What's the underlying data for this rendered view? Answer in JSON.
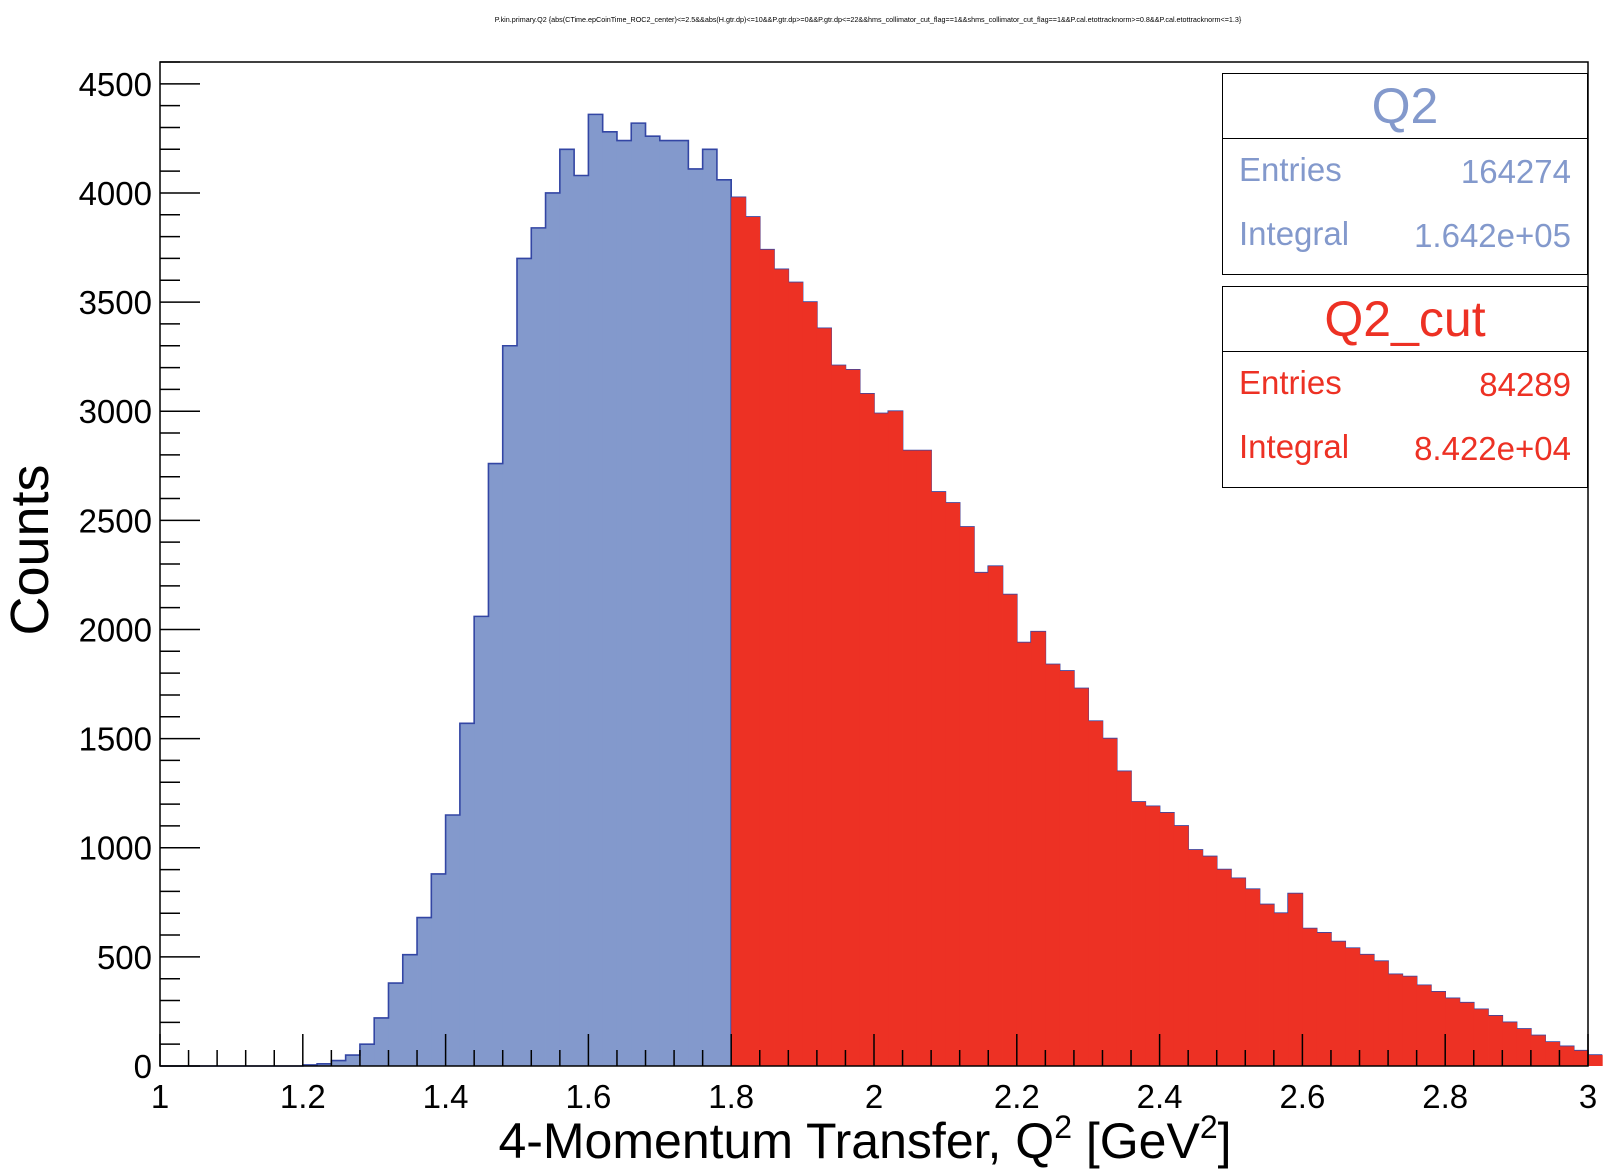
{
  "colors": {
    "q2_fill": "#8399cc",
    "q2_line": "#3346a4",
    "cut_fill": "#ed3124",
    "axis": "#000000"
  },
  "chart_data": {
    "type": "bar",
    "title": "P.kin.primary.Q2 {abs(CTime.epCoinTime_ROC2_center)<=2.5&&abs(H.gtr.dp)<=10&&P.gtr.dp>=0&&P.gtr.dp<=22&&hms_collimator_cut_flag==1&&shms_collimator_cut_flag==1&&P.cal.etottracknorm>=0.8&&P.cal.etottracknorm<=1.3}",
    "xlabel": "4-Momentum Transfer, Q",
    "xlabel_sup1": "2",
    "xlabel_units": " [GeV",
    "xlabel_sup2": "2",
    "xlabel_close": "]",
    "ylabel": "Counts",
    "xlim": [
      1,
      3
    ],
    "ylim": [
      0,
      4600
    ],
    "x_ticks": [
      "1",
      "1.2",
      "1.4",
      "1.6",
      "1.8",
      "2",
      "2.2",
      "2.4",
      "2.6",
      "2.8",
      "3"
    ],
    "y_ticks": [
      "0",
      "500",
      "1000",
      "1500",
      "2000",
      "2500",
      "3000",
      "3500",
      "4000",
      "4500"
    ],
    "bin_width": 0.02,
    "cut_threshold": 1.8,
    "bin_edges_start": 1.0,
    "series": [
      {
        "name": "Q2",
        "values": [
          0,
          0,
          0,
          0,
          0,
          0,
          0,
          0,
          0,
          0,
          5,
          10,
          25,
          50,
          100,
          220,
          380,
          510,
          680,
          880,
          1150,
          1570,
          2060,
          2760,
          3300,
          3700,
          3840,
          4000,
          4200,
          4080,
          4360,
          4280,
          4240,
          4320,
          4260,
          4240,
          4240,
          4110,
          4200,
          4060,
          3980,
          3890,
          3740,
          3650,
          3590,
          3500,
          3380,
          3210,
          3190,
          3080,
          2990,
          3000,
          2820,
          2820,
          2630,
          2580,
          2470,
          2260,
          2290,
          2160,
          1940,
          1990,
          1840,
          1810,
          1730,
          1580,
          1500,
          1350,
          1210,
          1190,
          1160,
          1100,
          990,
          960,
          900,
          860,
          810,
          740,
          700,
          790,
          630,
          610,
          570,
          540,
          510,
          480,
          420,
          410,
          370,
          340,
          310,
          290,
          260,
          230,
          200,
          170,
          140,
          110,
          90,
          70,
          50
        ],
        "stats": {
          "entries_label": "Entries",
          "entries": "164274",
          "integral_label": "Integral",
          "integral": "1.642e+05"
        }
      },
      {
        "name": "Q2_cut",
        "stats": {
          "entries_label": "Entries",
          "entries": "84289",
          "integral_label": "Integral",
          "integral": "8.422e+04"
        }
      }
    ]
  }
}
